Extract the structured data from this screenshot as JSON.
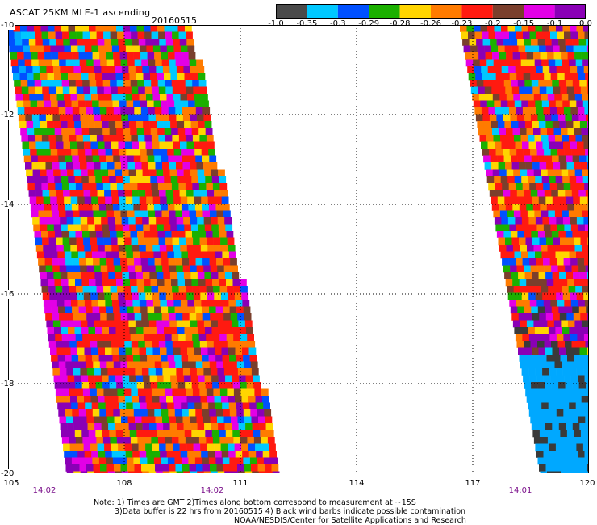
{
  "header": {
    "title": "ASCAT 25KM MLE-1 ascending",
    "date": "20160515"
  },
  "colorbar": {
    "colors": [
      "#4a4a4a",
      "#00c8ff",
      "#0050ff",
      "#1bb000",
      "#ffd500",
      "#ff7b00",
      "#ff1a10",
      "#7a3f2c",
      "#e300e6",
      "#8a00b6"
    ],
    "labels": [
      "-1.0",
      "-0.35",
      "-0.3",
      "-0.29",
      "-0.28",
      "-0.26",
      "-0.23",
      "-0.2",
      "-0.15",
      "-0.1",
      "0.0"
    ]
  },
  "map": {
    "lat_labels": [
      "-10",
      "-12",
      "-14",
      "-16",
      "-18",
      "-20"
    ],
    "lon_labels": [
      "105",
      "108",
      "111",
      "114",
      "117",
      "120"
    ],
    "time_labels": [
      "14:02",
      "14:02",
      "14:01"
    ],
    "swath_palette": [
      "#ff1a10",
      "#ff7b00",
      "#ffd500",
      "#1bb000",
      "#0050ff",
      "#00c8ff",
      "#7a3f2c",
      "#e300e6",
      "#8a00b6",
      "#ff1a10",
      "#ff7b00",
      "#ff1a10"
    ]
  },
  "notes": {
    "line1": "Note: 1) Times are GMT 2)Times along bottom correspond to measurement at ~15S",
    "line2": "3)Data buffer is 22 hrs from 20160515 4) Black wind barbs indicate possible contamination",
    "line3": "NOAA/NESDIS/Center for Satellite Applications and Research"
  }
}
